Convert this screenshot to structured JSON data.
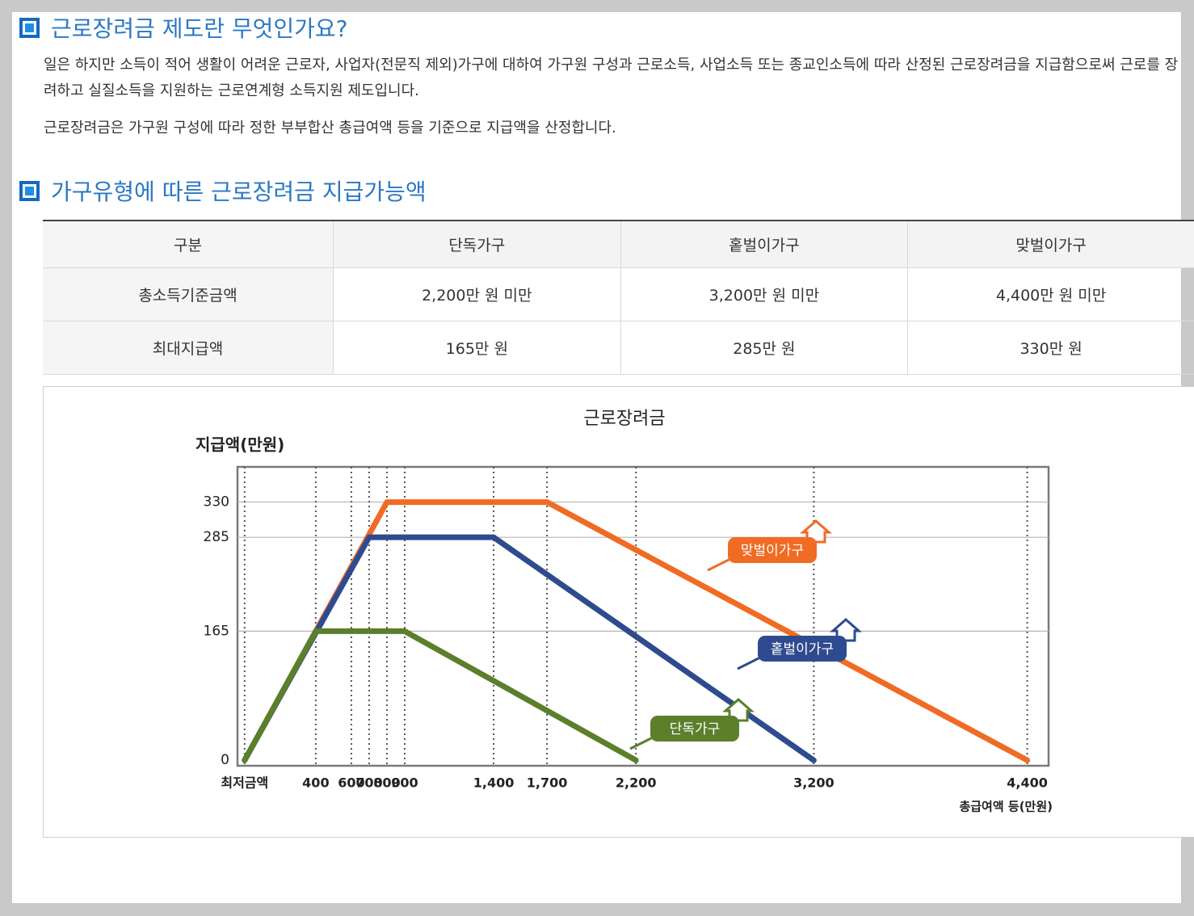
{
  "sections": [
    {
      "title": "근로장려금 제도란 무엇인가요?",
      "paragraphs": [
        "일은 하지만 소득이 적어 생활이 어려운 근로자, 사업자(전문직 제외)가구에 대하여 가구원 구성과 근로소득, 사업소득 또는 종교인소득에 따라 산정된 근로장려금을 지급함으로써 근로를 장려하고 실질소득을 지원하는 근로연계형 소득지원 제도입니다.",
        "근로장려금은 가구원 구성에 따라 정한 부부합산 총급여액 등을 기준으로 지급액을 산정합니다."
      ]
    },
    {
      "title": "가구유형에 따른 근로장려금 지급가능액"
    }
  ],
  "table": {
    "header": [
      "구분",
      "단독가구",
      "홑벌이가구",
      "맞벌이가구"
    ],
    "rows": [
      [
        "총소득기준금액",
        "2,200만 원 미만",
        "3,200만 원 미만",
        "4,400만 원 미만"
      ],
      [
        "최대지급액",
        "165만 원",
        "285만 원",
        "330만 원"
      ]
    ]
  },
  "chart_data": {
    "type": "line",
    "title": "근로장려금",
    "y_label": "지급액(만원)",
    "x_label": "총급여액 등(만원)",
    "xlim": [
      -40,
      4520
    ],
    "ylim": [
      -7,
      375
    ],
    "xticks": [
      {
        "value": 0,
        "label": "최저금액"
      },
      400,
      600,
      700,
      800,
      900,
      {
        "value": 1400,
        "label": "1,400"
      },
      {
        "value": 1700,
        "label": "1,700"
      },
      {
        "value": 2200,
        "label": "2,200"
      },
      {
        "value": 3200,
        "label": "3,200"
      },
      {
        "value": 4400,
        "label": "4,400"
      }
    ],
    "yticks": [
      0,
      165,
      285,
      330
    ],
    "grid": true,
    "series": [
      {
        "name": "맞벌이가구",
        "color": "#f06b23",
        "x": [
          0,
          800,
          1700,
          4400
        ],
        "values": [
          0,
          330,
          330,
          0
        ]
      },
      {
        "name": "홑벌이가구",
        "color": "#2f4b8f",
        "x": [
          0,
          700,
          1400,
          3200
        ],
        "values": [
          0,
          285,
          285,
          0
        ]
      },
      {
        "name": "단독가구",
        "color": "#5b7f2b",
        "x": [
          0,
          400,
          900,
          2200
        ],
        "values": [
          0,
          165,
          165,
          0
        ]
      }
    ]
  }
}
